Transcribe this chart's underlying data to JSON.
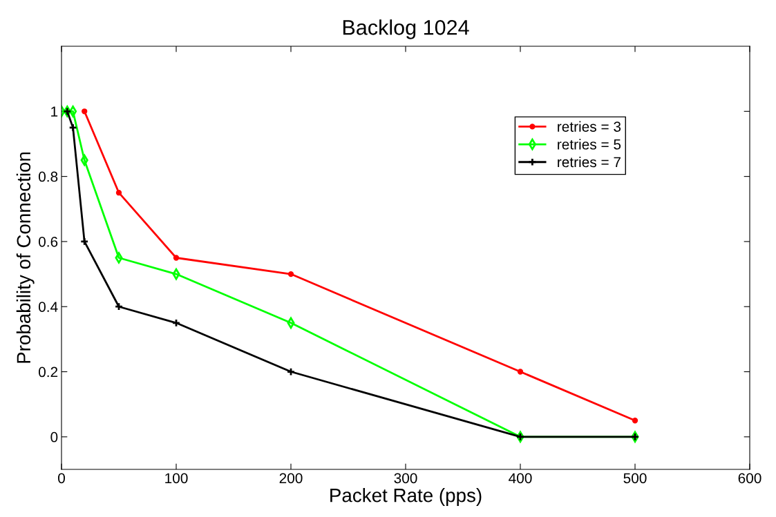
{
  "chart_data": {
    "type": "line",
    "title": "Backlog 1024",
    "xlabel": "Packet Rate (pps)",
    "ylabel": "Probability of Connection",
    "x": [
      0,
      5,
      10,
      20,
      50,
      100,
      200,
      400,
      500
    ],
    "series": [
      {
        "name": "retries = 3",
        "color": "#ff0000",
        "marker": "circle",
        "values": [
          null,
          null,
          null,
          1,
          0.75,
          0.55,
          0.5,
          0.2,
          0.05
        ]
      },
      {
        "name": "retries = 5",
        "color": "#00ff00",
        "marker": "diamond",
        "values": [
          1,
          1,
          1,
          0.85,
          0.55,
          0.5,
          0.35,
          0,
          0
        ]
      },
      {
        "name": "retries = 7",
        "color": "#000000",
        "marker": "cross",
        "values": [
          null,
          1,
          0.95,
          0.6,
          0.4,
          0.35,
          0.2,
          0,
          0
        ]
      }
    ],
    "xlim": [
      0,
      600
    ],
    "xticks": [
      0,
      100,
      200,
      300,
      400,
      500,
      600
    ],
    "ylim": [
      -0.1,
      1.2
    ],
    "yticks": [
      0,
      0.2,
      0.4,
      0.6,
      0.8,
      1
    ],
    "grid": false,
    "legend": "top right",
    "line_style": "solid"
  }
}
